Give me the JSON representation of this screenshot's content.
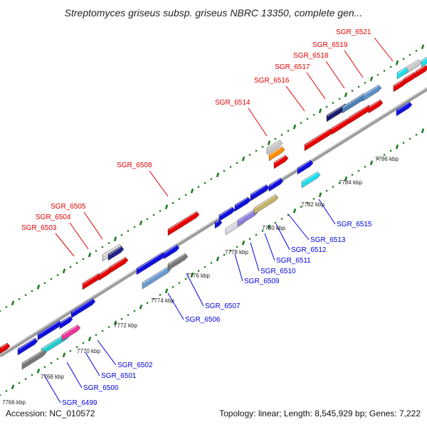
{
  "title": "Streptomyces griseus subsp. griseus NBRC 13350, complete gen...",
  "footer": {
    "accession": "Accession: NC_010572",
    "summary": "Topology: linear; Length: 8,545,929 bp; Genes: 7,222"
  },
  "colors": {
    "forward_label": "#e00000",
    "reverse_label": "#0000dd",
    "backbone": "#9a9a9a",
    "ticks": "#1a7a1a"
  },
  "ruler": [
    "7766 kbp",
    "7768 kbp",
    "7770 kbp",
    "7772 kbp",
    "7774 kbp",
    "7776 kbp",
    "7778 kbp",
    "7780 kbp",
    "7782 kbp",
    "7784 kbp",
    "7786 kbp"
  ],
  "forward_genes": [
    "SGR_6503",
    "SGR_6504",
    "SGR_6505",
    "SGR_6508",
    "SGR_6514",
    "SGR_6516",
    "SGR_6517",
    "SGR_6518",
    "SGR_6519",
    "SGR_6521"
  ],
  "reverse_genes": [
    "SGR_6499",
    "SGR_6500",
    "SGR_6501",
    "SGR_6502",
    "SGR_6506",
    "SGR_6507",
    "SGR_6509",
    "SGR_6510",
    "SGR_6511",
    "SGR_6512",
    "SGR_6513",
    "SGR_6515"
  ]
}
